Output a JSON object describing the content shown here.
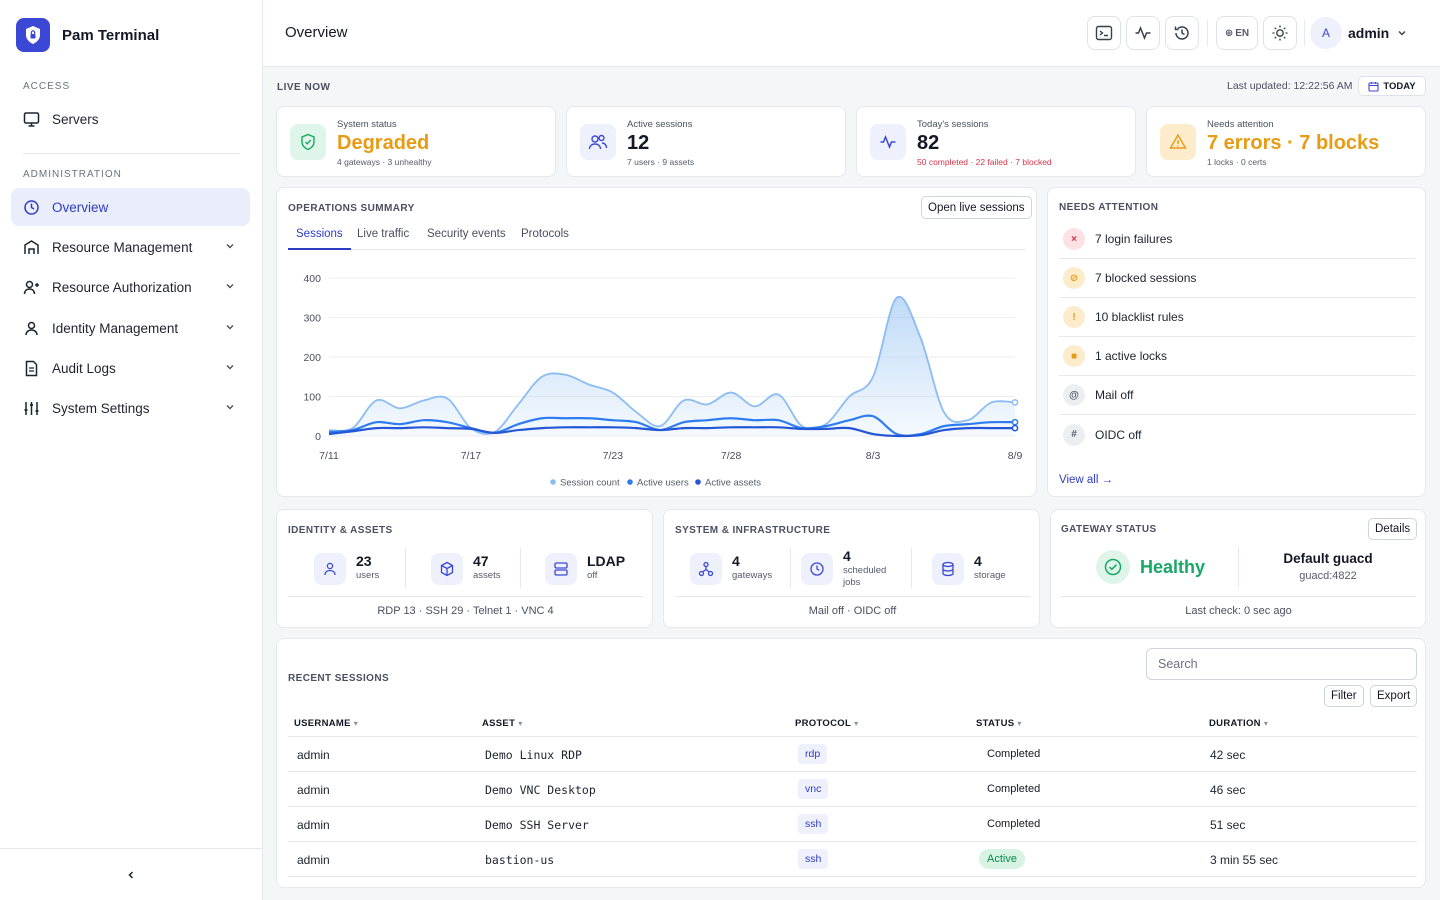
{
  "app": {
    "name": "Pam Terminal"
  },
  "sidebar": {
    "access_label": "ACCESS",
    "admin_label": "ADMINISTRATION",
    "items": [
      {
        "label": "Servers",
        "icon": "monitor-icon"
      },
      {
        "label": "Overview",
        "icon": "clock-icon"
      },
      {
        "label": "Resource Management",
        "icon": "building-icon"
      },
      {
        "label": "Resource Authorization",
        "icon": "user-key-icon"
      },
      {
        "label": "Identity Management",
        "icon": "user-icon"
      },
      {
        "label": "Audit Logs",
        "icon": "file-icon"
      },
      {
        "label": "System Settings",
        "icon": "sliders-icon"
      }
    ]
  },
  "header": {
    "title": "Overview",
    "lang": "EN",
    "avatar_initial": "A",
    "username": "admin"
  },
  "live": {
    "label": "LIVE NOW",
    "last_updated": "Last updated: 12:22:56 AM",
    "today_label": "TODAY"
  },
  "stats": [
    {
      "label": "System status",
      "value": "Degraded",
      "sub": "4 gateways · 3 unhealthy",
      "color": "#e89b14"
    },
    {
      "label": "Active sessions",
      "value": "12",
      "sub": "7 users · 9 assets",
      "color": "#141824"
    },
    {
      "label": "Today's sessions",
      "value": "82",
      "sub": "50 completed · 22 failed · 7 blocked",
      "color": "#141824",
      "sub_color": "#d9334a"
    },
    {
      "label": "Needs attention",
      "value": "7 errors · 7 blocks",
      "sub": "1 locks · 0 certs",
      "color": "#e89b14"
    }
  ],
  "ops": {
    "title": "OPERATIONS SUMMARY",
    "open_live": "Open live sessions",
    "tabs": [
      "Sessions",
      "Live traffic",
      "Security events",
      "Protocols"
    ]
  },
  "chart_data": {
    "type": "area",
    "x": [
      "7/11",
      "7/12",
      "7/13",
      "7/14",
      "7/15",
      "7/16",
      "7/17",
      "7/18",
      "7/19",
      "7/20",
      "7/21",
      "7/22",
      "7/23",
      "7/24",
      "7/25",
      "7/26",
      "7/27",
      "7/28",
      "7/29",
      "7/30",
      "7/31",
      "8/1",
      "8/2",
      "8/3",
      "8/4",
      "8/5",
      "8/6",
      "8/7",
      "8/8",
      "8/9"
    ],
    "x_ticks": [
      "7/11",
      "7/17",
      "7/23",
      "7/28",
      "8/3",
      "8/9"
    ],
    "y_ticks": [
      0,
      100,
      200,
      300,
      400
    ],
    "ylim": [
      0,
      400
    ],
    "series": [
      {
        "name": "Session count",
        "color": "#8bbcf2",
        "values": [
          15,
          20,
          90,
          70,
          90,
          95,
          20,
          10,
          80,
          150,
          155,
          130,
          110,
          60,
          25,
          90,
          80,
          110,
          75,
          105,
          25,
          30,
          100,
          150,
          350,
          250,
          60,
          40,
          85,
          85
        ]
      },
      {
        "name": "Active users",
        "color": "#2f7cf0",
        "values": [
          10,
          15,
          35,
          30,
          40,
          35,
          20,
          8,
          30,
          45,
          45,
          45,
          40,
          35,
          15,
          35,
          40,
          45,
          40,
          40,
          20,
          25,
          40,
          50,
          5,
          5,
          25,
          30,
          35,
          35
        ]
      },
      {
        "name": "Active assets",
        "color": "#2456d6",
        "values": [
          5,
          12,
          20,
          20,
          22,
          20,
          18,
          8,
          15,
          20,
          22,
          22,
          22,
          20,
          15,
          20,
          20,
          22,
          22,
          22,
          18,
          18,
          20,
          5,
          0,
          2,
          15,
          20,
          20,
          20
        ]
      }
    ]
  },
  "attention": {
    "title": "NEEDS ATTENTION",
    "items": [
      {
        "label": "7 login failures",
        "glyph": "×",
        "bg": "#fde1e4",
        "fg": "#d9334a"
      },
      {
        "label": "7 blocked sessions",
        "glyph": "⊘",
        "bg": "#fdeccc",
        "fg": "#e89b14"
      },
      {
        "label": "10 blacklist rules",
        "glyph": "!",
        "bg": "#fdeccc",
        "fg": "#e89b14"
      },
      {
        "label": "1 active locks",
        "glyph": "■",
        "bg": "#fdeccc",
        "fg": "#e89b14"
      },
      {
        "label": "Mail off",
        "glyph": "@",
        "bg": "#eceef2",
        "fg": "#555b6a"
      },
      {
        "label": "OIDC off",
        "glyph": "#",
        "bg": "#eceef2",
        "fg": "#555b6a"
      }
    ],
    "view_all": "View all →"
  },
  "identity": {
    "title": "IDENTITY & ASSETS",
    "users_val": "23",
    "users_lbl": "users",
    "assets_val": "47",
    "assets_lbl": "assets",
    "ldap_val": "LDAP",
    "ldap_lbl": "off",
    "footer": "RDP 13 · SSH 29 · Telnet 1 · VNC 4"
  },
  "system": {
    "title": "SYSTEM & INFRASTRUCTURE",
    "gw_val": "4",
    "gw_lbl": "gateways",
    "jobs_val": "4",
    "jobs_lbl": "scheduled jobs",
    "storage_val": "4",
    "storage_lbl": "storage",
    "footer": "Mail off · OIDC off"
  },
  "gateway": {
    "title": "GATEWAY STATUS",
    "details": "Details",
    "status": "Healthy",
    "name": "Default guacd",
    "addr": "guacd:4822",
    "last_check": "Last check: 0 sec ago"
  },
  "recent": {
    "title": "RECENT SESSIONS",
    "search_placeholder": "Search",
    "filter": "Filter",
    "export": "Export",
    "columns": [
      "USERNAME",
      "ASSET",
      "PROTOCOL",
      "STATUS",
      "DURATION"
    ],
    "rows": [
      {
        "user": "admin",
        "asset": "Demo Linux RDP",
        "protocol": "rdp",
        "status": "Completed",
        "duration": "42 sec"
      },
      {
        "user": "admin",
        "asset": "Demo VNC Desktop",
        "protocol": "vnc",
        "status": "Completed",
        "duration": "46 sec"
      },
      {
        "user": "admin",
        "asset": "Demo SSH Server",
        "protocol": "ssh",
        "status": "Completed",
        "duration": "51 sec"
      },
      {
        "user": "admin",
        "asset": "bastion-us",
        "protocol": "ssh",
        "status": "Active",
        "duration": "3 min 55 sec"
      }
    ]
  }
}
